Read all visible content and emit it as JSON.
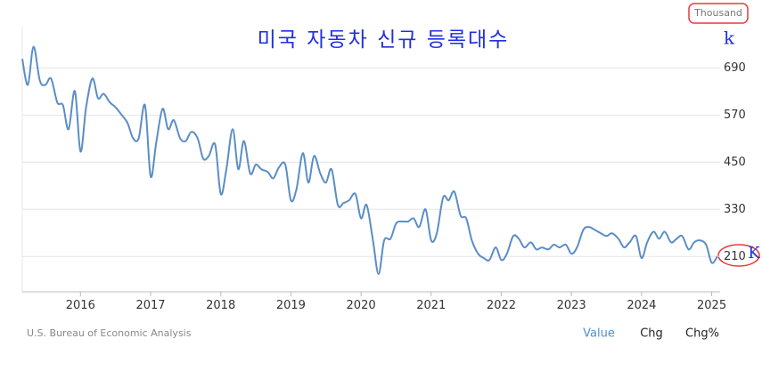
{
  "chart_data": {
    "type": "line",
    "title": "미국 자동차 신규 등록대수",
    "unit_label": "Thousand",
    "annotations": [
      "k",
      "K"
    ],
    "color": "#5b8dc6",
    "x": [
      2015.17,
      2015.25,
      2015.33,
      2015.42,
      2015.5,
      2015.58,
      2015.67,
      2015.75,
      2015.83,
      2015.92,
      2016,
      2016.08,
      2016.17,
      2016.25,
      2016.33,
      2016.42,
      2016.5,
      2016.58,
      2016.67,
      2016.75,
      2016.83,
      2016.92,
      2017,
      2017.08,
      2017.17,
      2017.25,
      2017.33,
      2017.42,
      2017.5,
      2017.58,
      2017.67,
      2017.75,
      2017.83,
      2017.92,
      2018,
      2018.08,
      2018.17,
      2018.25,
      2018.33,
      2018.42,
      2018.5,
      2018.58,
      2018.67,
      2018.75,
      2018.83,
      2018.92,
      2019,
      2019.08,
      2019.17,
      2019.25,
      2019.33,
      2019.42,
      2019.5,
      2019.58,
      2019.67,
      2019.75,
      2019.83,
      2019.92,
      2020,
      2020.08,
      2020.17,
      2020.25,
      2020.33,
      2020.42,
      2020.5,
      2020.58,
      2020.67,
      2020.75,
      2020.83,
      2020.92,
      2021,
      2021.08,
      2021.17,
      2021.25,
      2021.33,
      2021.42,
      2021.5,
      2021.58,
      2021.67,
      2021.75,
      2021.83,
      2021.92,
      2022,
      2022.08,
      2022.17,
      2022.25,
      2022.33,
      2022.42,
      2022.5,
      2022.58,
      2022.67,
      2022.75,
      2022.83,
      2022.92,
      2023,
      2023.08,
      2023.17,
      2023.25,
      2023.33,
      2023.42,
      2023.5,
      2023.58,
      2023.67,
      2023.75,
      2023.83,
      2023.92,
      2024,
      2024.08,
      2024.17,
      2024.25,
      2024.33,
      2024.42,
      2024.5,
      2024.58,
      2024.67,
      2024.75,
      2024.83,
      2024.92,
      2025,
      2025.08
    ],
    "values": [
      713,
      647,
      744,
      658,
      647,
      663,
      602,
      595,
      534,
      631,
      477,
      590,
      663,
      613,
      624,
      602,
      590,
      572,
      550,
      511,
      511,
      595,
      414,
      500,
      586,
      534,
      557,
      511,
      504,
      527,
      511,
      459,
      466,
      495,
      369,
      432,
      534,
      432,
      504,
      421,
      444,
      432,
      425,
      409,
      437,
      444,
      353,
      382,
      473,
      398,
      466,
      421,
      398,
      432,
      341,
      346,
      353,
      369,
      307,
      341,
      251,
      165,
      251,
      255,
      294,
      299,
      299,
      307,
      285,
      330,
      251,
      269,
      360,
      353,
      375,
      314,
      307,
      251,
      217,
      206,
      201,
      233,
      201,
      217,
      262,
      255,
      233,
      246,
      228,
      233,
      228,
      240,
      233,
      240,
      217,
      233,
      278,
      285,
      278,
      269,
      262,
      269,
      255,
      233,
      246,
      262,
      206,
      246,
      273,
      255,
      273,
      246,
      255,
      262,
      228,
      246,
      251,
      240,
      194,
      210
    ],
    "xlim": [
      2015.17,
      2025.12
    ],
    "xticks": [
      2016,
      2017,
      2018,
      2019,
      2020,
      2021,
      2022,
      2023,
      2024,
      2025
    ],
    "ylim": [
      120,
      795
    ],
    "yticks": [
      210,
      330,
      450,
      570,
      690
    ],
    "grid": true
  },
  "source": "U.S. Bureau of Economic Analysis",
  "controls": [
    "Value",
    "Chg",
    "Chg%"
  ]
}
